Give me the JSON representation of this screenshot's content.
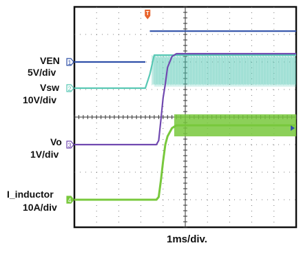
{
  "chart_data": {
    "type": "line",
    "timebase": "1ms/div.",
    "x": [
      0,
      0.4,
      0.8,
      1.2,
      1.6,
      2.0,
      2.4,
      2.8,
      3.2,
      3.4,
      3.6,
      3.7,
      3.8,
      3.9,
      4.0,
      4.1,
      4.2,
      4.4,
      4.6,
      4.8,
      5.0,
      5.5,
      6.0,
      6.5,
      7.0,
      7.5,
      8.0,
      8.5,
      9.0,
      9.5,
      10.0
    ],
    "series": [
      {
        "name": "VEN",
        "scale": "5V/div",
        "marker": "1",
        "color": "#2f50a8",
        "values": [
          0,
          0,
          0,
          0,
          0,
          0,
          0,
          0,
          0,
          5.6,
          5.6,
          5.6,
          5.6,
          5.6,
          5.6,
          5.6,
          5.6,
          5.6,
          5.6,
          5.6,
          5.6,
          5.6,
          5.6,
          5.6,
          5.6,
          5.6,
          5.6,
          5.6,
          5.6,
          5.6,
          5.6
        ]
      },
      {
        "name": "Vsw",
        "scale": "10V/div",
        "marker": "2",
        "color": "#58c8b4",
        "values": [
          0,
          0,
          0,
          0,
          0,
          0,
          0,
          0,
          0,
          5,
          12,
          12,
          12,
          12,
          12,
          12,
          12,
          12,
          12,
          12,
          12,
          12,
          12,
          12,
          12,
          12,
          12,
          12,
          12,
          12,
          12
        ]
      },
      {
        "name": "Vo",
        "scale": "1V/div",
        "marker": "3",
        "color": "#7048b0",
        "values": [
          0,
          0,
          0,
          0,
          0,
          0,
          0,
          0,
          0,
          0,
          0,
          0,
          0.15,
          0.9,
          1.7,
          2.2,
          2.8,
          3.2,
          3.3,
          3.3,
          3.3,
          3.3,
          3.3,
          3.3,
          3.3,
          3.3,
          3.3,
          3.3,
          3.3,
          3.3,
          3.3
        ]
      },
      {
        "name": "I_inductor",
        "scale": "10A/div",
        "marker": "4",
        "color": "#78c83c",
        "values": [
          0,
          0,
          0,
          0,
          0,
          0,
          0,
          0,
          0,
          0,
          0,
          0,
          1,
          7,
          14,
          20,
          23,
          26,
          27,
          27,
          27,
          27,
          27,
          27,
          27,
          27,
          27,
          27,
          27,
          27,
          27
        ]
      }
    ],
    "grid": true,
    "trigger_marker": "T"
  }
}
